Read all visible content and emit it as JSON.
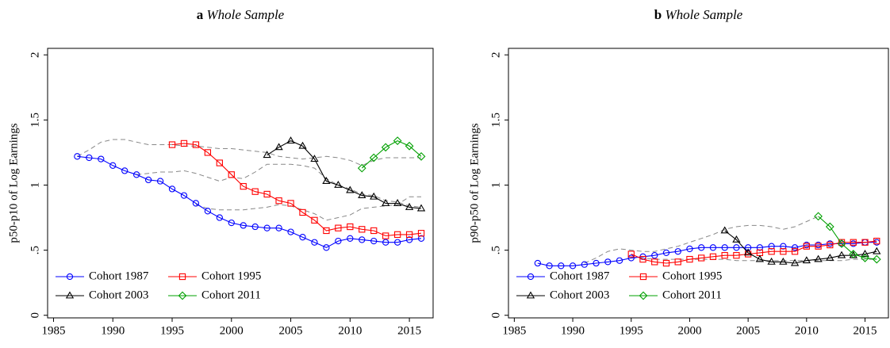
{
  "chart_data": [
    {
      "type": "line",
      "panel_label": "a",
      "title": "Whole Sample",
      "ylabel": "p50-p10 of Log Earnings",
      "x": [
        1987,
        1988,
        1989,
        1990,
        1991,
        1992,
        1993,
        1994,
        1995,
        1996,
        1997,
        1998,
        1999,
        2000,
        2001,
        2002,
        2003,
        2004,
        2005,
        2006,
        2007,
        2008,
        2009,
        2010,
        2011,
        2012,
        2013,
        2014,
        2015,
        2016
      ],
      "xlim": [
        1984.5,
        2017
      ],
      "xticks": [
        1985,
        1990,
        1995,
        2000,
        2005,
        2010,
        2015
      ],
      "ylim": [
        -0.02,
        2.05
      ],
      "yticks": [
        0,
        {
          "value": 0.5,
          "label": ".5"
        },
        1,
        {
          "value": 1.5,
          "label": "1.5"
        },
        2
      ],
      "legend": "lower left",
      "series": [
        {
          "color": "#888888",
          "dash": true,
          "values": [
            1.22,
            1.27,
            1.33,
            1.35,
            1.35,
            1.33,
            1.31,
            1.31,
            1.31,
            1.3,
            1.3,
            1.29,
            1.28,
            1.28,
            1.27,
            1.26,
            1.25,
            1.22,
            1.21,
            1.2,
            1.21,
            1.22,
            1.21,
            1.19,
            1.15,
            1.19,
            1.21,
            1.21,
            1.21,
            1.21
          ]
        },
        {
          "color": "#888888",
          "dash": true,
          "values": [
            null,
            null,
            null,
            null,
            null,
            1.08,
            1.09,
            1.1,
            1.1,
            1.11,
            1.09,
            1.06,
            1.03,
            1.06,
            1.05,
            1.1,
            1.16,
            1.16,
            1.16,
            1.15,
            1.13,
            1.05,
            1.0,
            0.97,
            0.93,
            0.92,
            0.88,
            0.87,
            0.84,
            0.83
          ]
        },
        {
          "color": "#888888",
          "dash": true,
          "values": [
            null,
            null,
            null,
            null,
            null,
            null,
            null,
            null,
            null,
            null,
            0.85,
            0.82,
            0.81,
            0.81,
            0.81,
            0.82,
            0.83,
            0.85,
            0.84,
            0.81,
            0.78,
            0.73,
            0.75,
            0.77,
            0.82,
            0.83,
            0.84,
            0.85,
            0.91,
            0.91
          ]
        },
        {
          "name": "Cohort 1987",
          "color": "#0000ff",
          "marker": "circle",
          "values": [
            1.22,
            1.21,
            1.2,
            1.15,
            1.11,
            1.08,
            1.04,
            1.03,
            0.97,
            0.92,
            0.86,
            0.8,
            0.75,
            0.71,
            0.69,
            0.68,
            0.67,
            0.67,
            0.64,
            0.6,
            0.56,
            0.52,
            0.57,
            0.59,
            0.58,
            0.57,
            0.56,
            0.56,
            0.58,
            0.59
          ]
        },
        {
          "name": "Cohort 1995",
          "color": "#ff0000",
          "marker": "square",
          "values": [
            null,
            null,
            null,
            null,
            null,
            null,
            null,
            null,
            1.31,
            1.32,
            1.31,
            1.25,
            1.17,
            1.08,
            0.99,
            0.95,
            0.93,
            0.88,
            0.86,
            0.79,
            0.73,
            0.65,
            0.67,
            0.68,
            0.66,
            0.65,
            0.61,
            0.62,
            0.62,
            0.63
          ]
        },
        {
          "name": "Cohort 2003",
          "color": "#000000",
          "marker": "triangle",
          "values": [
            null,
            null,
            null,
            null,
            null,
            null,
            null,
            null,
            null,
            null,
            null,
            null,
            null,
            null,
            null,
            null,
            1.23,
            1.29,
            1.34,
            1.3,
            1.2,
            1.03,
            1.0,
            0.96,
            0.92,
            0.91,
            0.86,
            0.86,
            0.83,
            0.82
          ]
        },
        {
          "name": "Cohort 2011",
          "color": "#00a000",
          "marker": "diamond",
          "values": [
            null,
            null,
            null,
            null,
            null,
            null,
            null,
            null,
            null,
            null,
            null,
            null,
            null,
            null,
            null,
            null,
            null,
            null,
            null,
            null,
            null,
            null,
            null,
            null,
            1.13,
            1.21,
            1.29,
            1.34,
            1.3,
            1.22
          ]
        }
      ]
    },
    {
      "type": "line",
      "panel_label": "b",
      "title": "Whole Sample",
      "ylabel": "p90-p50 of Log Earnings",
      "x": [
        1987,
        1988,
        1989,
        1990,
        1991,
        1992,
        1993,
        1994,
        1995,
        1996,
        1997,
        1998,
        1999,
        2000,
        2001,
        2002,
        2003,
        2004,
        2005,
        2006,
        2007,
        2008,
        2009,
        2010,
        2011,
        2012,
        2013,
        2014,
        2015,
        2016
      ],
      "xlim": [
        1984.5,
        2017
      ],
      "xticks": [
        1985,
        1990,
        1995,
        2000,
        2005,
        2010,
        2015
      ],
      "ylim": [
        -0.02,
        2.05
      ],
      "yticks": [
        0,
        {
          "value": 0.5,
          "label": ".5"
        },
        1,
        {
          "value": 1.5,
          "label": "1.5"
        },
        2
      ],
      "legend": "lower left",
      "series": [
        {
          "color": "#888888",
          "dash": true,
          "values": [
            null,
            null,
            null,
            null,
            0.4,
            0.44,
            0.49,
            0.51,
            0.5,
            0.49,
            0.49,
            0.51,
            0.53,
            0.56,
            0.59,
            0.62,
            0.66,
            0.68,
            0.69,
            0.69,
            0.68,
            0.66,
            0.68,
            0.72,
            0.76,
            null,
            null,
            null,
            null,
            null
          ]
        },
        {
          "color": "#888888",
          "dash": true,
          "values": [
            null,
            null,
            null,
            null,
            null,
            null,
            null,
            null,
            0.44,
            0.44,
            0.43,
            0.43,
            0.43,
            0.43,
            0.43,
            0.43,
            0.43,
            0.42,
            0.42,
            0.42,
            0.42,
            0.42,
            0.42,
            0.42,
            0.42,
            0.42,
            0.42,
            0.43,
            0.43,
            0.43
          ]
        },
        {
          "name": "Cohort 1987",
          "color": "#0000ff",
          "marker": "circle",
          "values": [
            0.4,
            0.38,
            0.38,
            0.38,
            0.39,
            0.4,
            0.41,
            0.42,
            0.44,
            0.45,
            0.46,
            0.48,
            0.49,
            0.51,
            0.52,
            0.52,
            0.52,
            0.52,
            0.52,
            0.52,
            0.53,
            0.53,
            0.52,
            0.54,
            0.54,
            0.55,
            0.55,
            0.55,
            0.56,
            0.56
          ]
        },
        {
          "name": "Cohort 1995",
          "color": "#ff0000",
          "marker": "square",
          "values": [
            null,
            null,
            null,
            null,
            null,
            null,
            null,
            null,
            0.47,
            0.43,
            0.41,
            0.4,
            0.41,
            0.43,
            0.44,
            0.45,
            0.46,
            0.46,
            0.47,
            0.48,
            0.49,
            0.49,
            0.49,
            0.53,
            0.53,
            0.54,
            0.56,
            0.56,
            0.56,
            0.57
          ]
        },
        {
          "name": "Cohort 2003",
          "color": "#000000",
          "marker": "triangle",
          "values": [
            null,
            null,
            null,
            null,
            null,
            null,
            null,
            null,
            null,
            null,
            null,
            null,
            null,
            null,
            null,
            null,
            0.65,
            0.58,
            0.48,
            0.43,
            0.41,
            0.41,
            0.4,
            0.42,
            0.43,
            0.44,
            0.46,
            0.46,
            0.47,
            0.49
          ]
        },
        {
          "name": "Cohort 2011",
          "color": "#00a000",
          "marker": "diamond",
          "values": [
            null,
            null,
            null,
            null,
            null,
            null,
            null,
            null,
            null,
            null,
            null,
            null,
            null,
            null,
            null,
            null,
            null,
            null,
            null,
            null,
            null,
            null,
            null,
            null,
            0.76,
            0.68,
            0.55,
            0.47,
            0.44,
            0.43
          ]
        }
      ]
    }
  ]
}
